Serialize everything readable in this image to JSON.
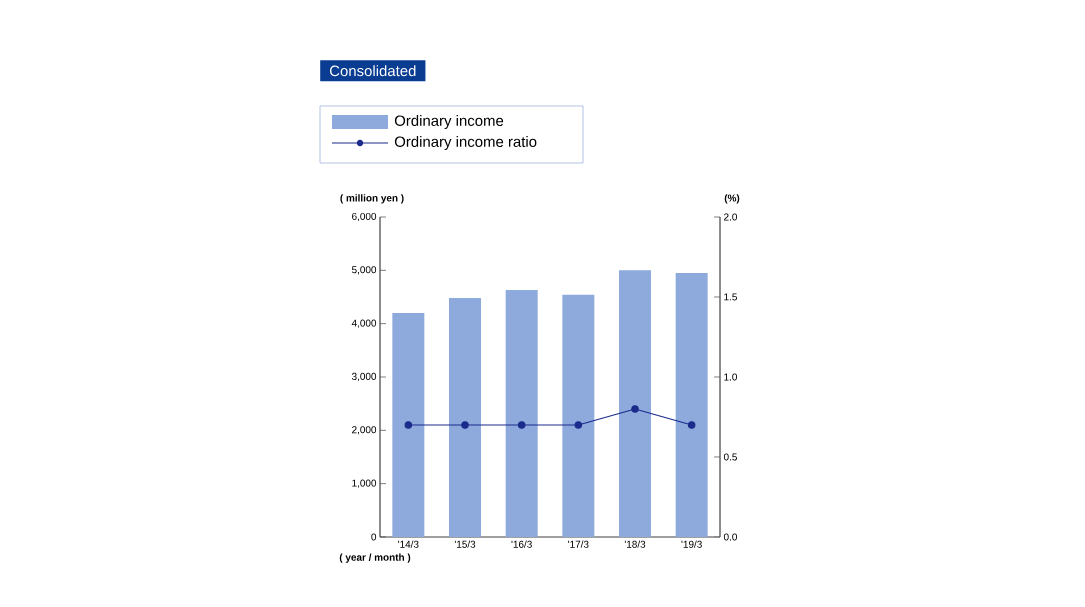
{
  "chart_data": {
    "type": "bar",
    "title": "Consolidated",
    "categories": [
      "'14/3",
      "'15/3",
      "'16/3",
      "'17/3",
      "'18/3",
      "'19/3"
    ],
    "series": [
      {
        "name": "Ordinary income",
        "color": "#8eaadc",
        "values": [
          4200,
          4480,
          4630,
          4540,
          5000,
          4950
        ]
      },
      {
        "name": "Ordinary income ratio",
        "type": "line",
        "axis": "y2",
        "color": "#1a2b8c",
        "values": [
          0.7,
          0.7,
          0.7,
          0.7,
          0.8,
          0.7
        ]
      }
    ],
    "ylabel": "( million yen )",
    "y2label": "(%)",
    "xlabel": "( year / month )",
    "ylim": [
      0,
      6000
    ],
    "yticks": [
      0,
      {
        "value": 1000,
        "label": "1,000"
      },
      {
        "value": 2000,
        "label": "2,000"
      },
      {
        "value": 3000,
        "label": "3,000"
      },
      {
        "value": 4000,
        "label": "4,000"
      },
      {
        "value": 5000,
        "label": "5,000"
      },
      {
        "value": 6000,
        "label": "6,000"
      }
    ],
    "y2lim": [
      0,
      2
    ],
    "y2ticks": [
      {
        "value": 0,
        "label": "0.0"
      },
      {
        "value": 0.5,
        "label": "0.5"
      },
      {
        "value": 1,
        "label": "1.0"
      },
      {
        "value": 1.5,
        "label": "1.5"
      },
      {
        "value": 2,
        "label": "2.0"
      }
    ],
    "grid": false,
    "legend": "top left",
    "marker": "circle",
    "line_style": "solid"
  }
}
